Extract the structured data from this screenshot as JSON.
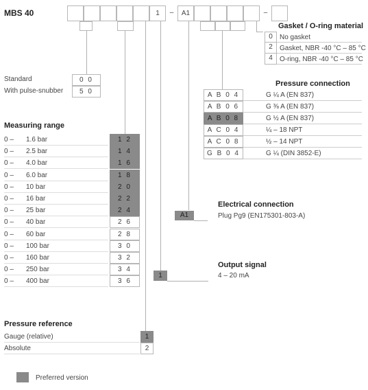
{
  "title": "MBS 40",
  "code_boxes": [
    "",
    "",
    "",
    "",
    "",
    "1",
    "–",
    "A1",
    "",
    "",
    "",
    "",
    "–",
    ""
  ],
  "gasket": {
    "heading": "Gasket / O-ring material",
    "rows": [
      {
        "code": "0",
        "label": "No gasket"
      },
      {
        "code": "2",
        "label": "Gasket, NBR -40 °C – 85 °C"
      },
      {
        "code": "4",
        "label": "O-ring, NBR -40 °C – 85 °C"
      }
    ]
  },
  "snubber": {
    "rows": [
      {
        "label": "Standard",
        "code": "0 0"
      },
      {
        "label": "With pulse-snubber",
        "code": "5 0"
      }
    ]
  },
  "pressure_connection": {
    "heading": "Pressure connection",
    "rows": [
      {
        "code": "A B 0 4",
        "label": "G ¼ A (EN 837)",
        "preferred": false
      },
      {
        "code": "A B 0 6",
        "label": "G ⅜ A (EN 837)",
        "preferred": false
      },
      {
        "code": "A B 0 8",
        "label": "G ½ A (EN 837)",
        "preferred": true
      },
      {
        "code": "A C 0 4",
        "label": "¼ – 18 NPT",
        "preferred": false
      },
      {
        "code": "A C 0 8",
        "label": "½ – 14 NPT",
        "preferred": false
      },
      {
        "code": "G B 0 4",
        "label": "G ¼ (DIN 3852-E)",
        "preferred": false
      }
    ]
  },
  "measuring_range": {
    "heading": "Measuring range",
    "rows": [
      {
        "from": "0 –",
        "to": "1.6 bar",
        "code": "1 2",
        "preferred": true
      },
      {
        "from": "0 –",
        "to": "2.5 bar",
        "code": "1 4",
        "preferred": true
      },
      {
        "from": "0 –",
        "to": "4.0 bar",
        "code": "1 6",
        "preferred": true
      },
      {
        "from": "0 –",
        "to": "6.0 bar",
        "code": "1 8",
        "preferred": true
      },
      {
        "from": "0 –",
        "to": "10 bar",
        "code": "2 0",
        "preferred": true
      },
      {
        "from": "0 –",
        "to": "16 bar",
        "code": "2 2",
        "preferred": true
      },
      {
        "from": "0 –",
        "to": "25 bar",
        "code": "2 4",
        "preferred": true
      },
      {
        "from": "0 –",
        "to": "40 bar",
        "code": "2 6",
        "preferred": false
      },
      {
        "from": "0 –",
        "to": "60 bar",
        "code": "2 8",
        "preferred": false
      },
      {
        "from": "0 –",
        "to": "100 bar",
        "code": "3 0",
        "preferred": false
      },
      {
        "from": "0 –",
        "to": "160 bar",
        "code": "3 2",
        "preferred": false
      },
      {
        "from": "0 –",
        "to": "250 bar",
        "code": "3 4",
        "preferred": false
      },
      {
        "from": "0 –",
        "to": "400 bar",
        "code": "3 6",
        "preferred": false
      }
    ]
  },
  "electrical": {
    "heading": "Electrical connection",
    "code": "A1",
    "label": "Plug Pg9 (EN175301-803-A)"
  },
  "output": {
    "heading": "Output signal",
    "code": "1",
    "label": "4 – 20 mA"
  },
  "pressure_reference": {
    "heading": "Pressure reference",
    "rows": [
      {
        "label": "Gauge (relative)",
        "code": "1",
        "preferred": true
      },
      {
        "label": "Absolute",
        "code": "2",
        "preferred": false
      }
    ]
  },
  "legend": {
    "label": "Preferred version"
  },
  "colors": {
    "preferred": "#8a8a8a",
    "border": "#b7b7b7"
  }
}
